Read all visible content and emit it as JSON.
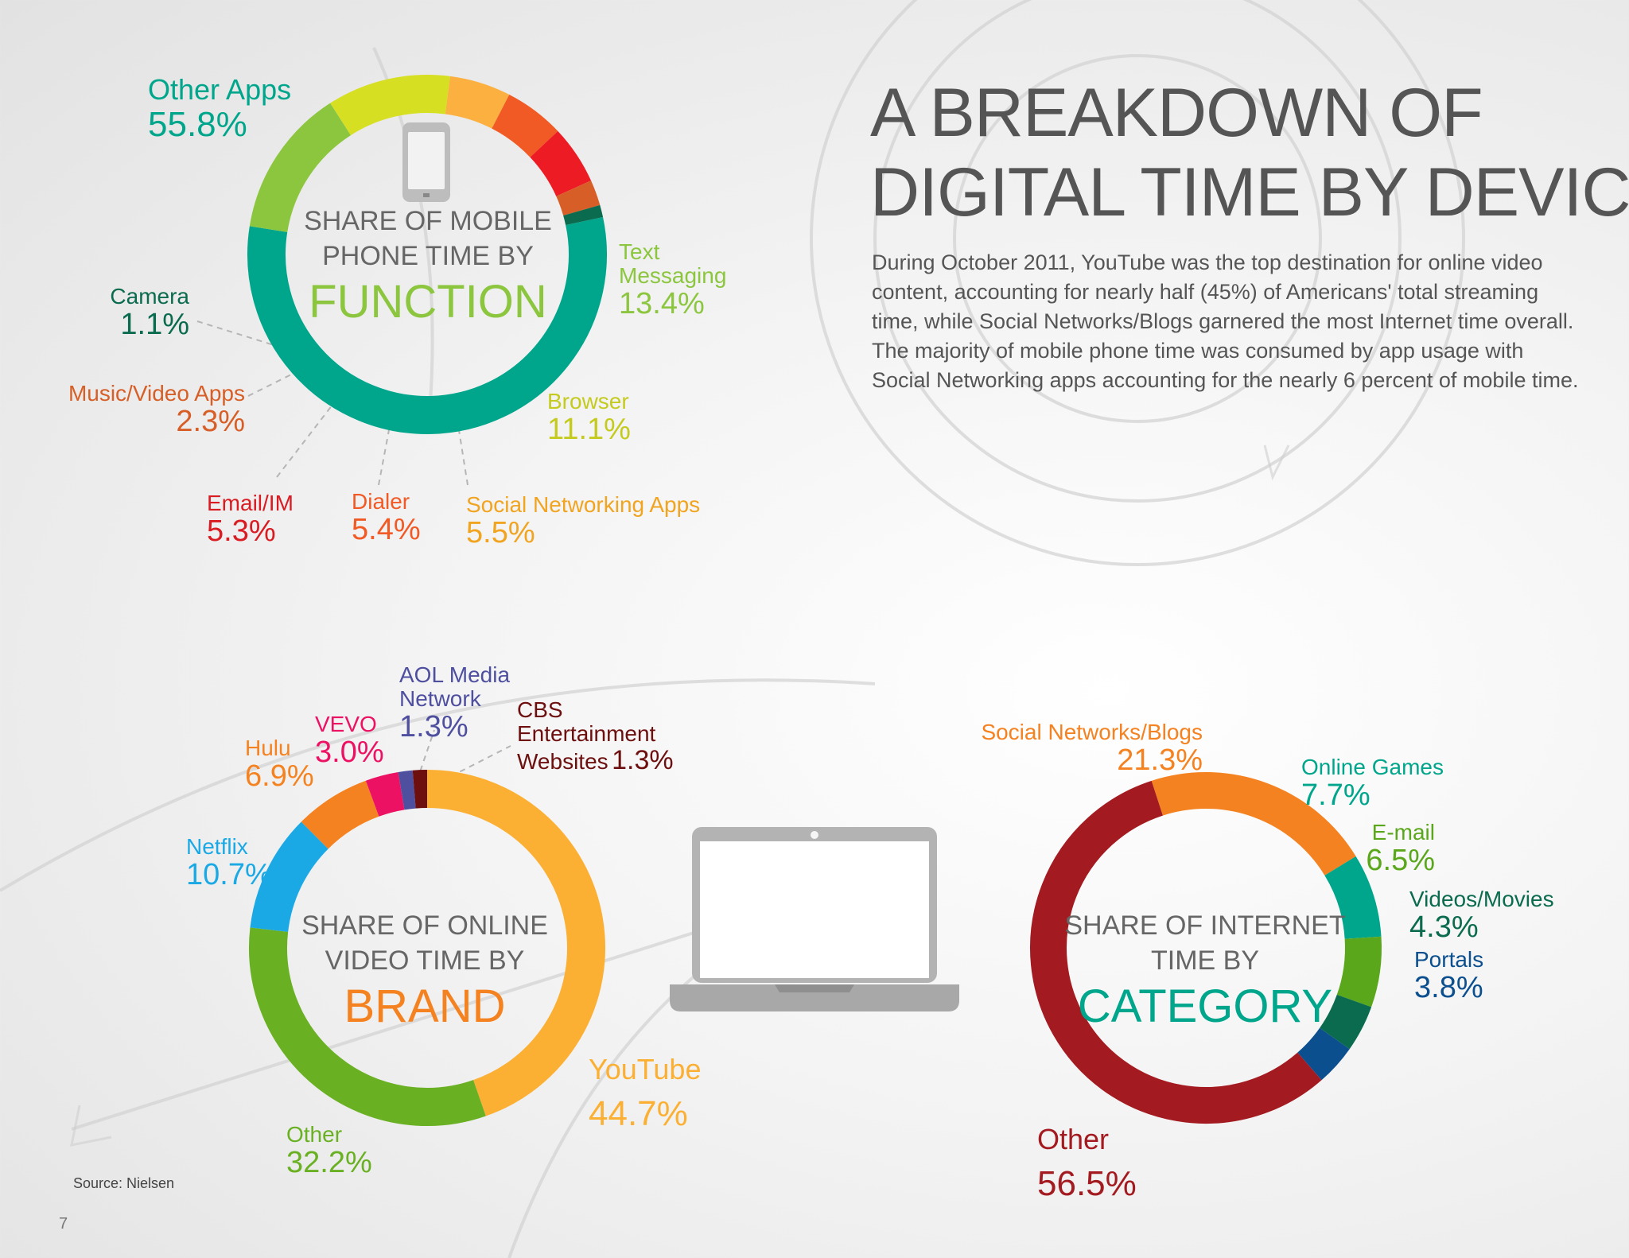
{
  "title_line1": "A BREAKDOWN OF",
  "title_line2": "DIGITAL TIME BY DEVICE",
  "intro": "During October 2011, YouTube was the top destination for online video content, accounting for nearly half (45%) of Americans' total streaming time, while Social Networks/Blogs garnered the most Internet time overall. The majority of mobile phone time was consumed by app usage with Social Networking apps accounting for the nearly 6 percent of mobile time.",
  "source": "Source: Nielsen",
  "page_number": "7",
  "icons": [
    "mobile-phone-icon",
    "laptop-icon"
  ],
  "chart_data": [
    {
      "type": "pie",
      "style": "donut",
      "title_lines": [
        "SHARE OF MOBILE",
        "PHONE TIME BY"
      ],
      "title_keyword": "FUNCTION",
      "keyword_color": "#8cc63f",
      "slices": [
        {
          "label": "Other Apps",
          "value": 55.8,
          "display": "55.8%",
          "color": "#00a68c"
        },
        {
          "label": "Text Messaging",
          "label_lines": [
            "Text",
            "Messaging"
          ],
          "value": 13.4,
          "display": "13.4%",
          "color": "#8cc63f"
        },
        {
          "label": "Browser",
          "value": 11.1,
          "display": "11.1%",
          "color": "#d7df23"
        },
        {
          "label": "Social Networking Apps",
          "value": 5.5,
          "display": "5.5%",
          "color": "#fbb040"
        },
        {
          "label": "Dialer",
          "value": 5.4,
          "display": "5.4%",
          "color": "#f15a24"
        },
        {
          "label": "Email/IM",
          "value": 5.3,
          "display": "5.3%",
          "color": "#ed1c24"
        },
        {
          "label": "Music/Video Apps",
          "value": 2.3,
          "display": "2.3%",
          "color": "#d75f27"
        },
        {
          "label": "Camera",
          "value": 1.1,
          "display": "1.1%",
          "color": "#0b6b4f"
        }
      ]
    },
    {
      "type": "pie",
      "style": "donut",
      "title_lines": [
        "SHARE OF ONLINE",
        "VIDEO TIME BY"
      ],
      "title_keyword": "BRAND",
      "keyword_color": "#f58220",
      "slices": [
        {
          "label": "YouTube",
          "value": 44.7,
          "display": "44.7%",
          "color": "#fbb034"
        },
        {
          "label": "Other",
          "value": 32.2,
          "display": "32.2%",
          "color": "#6ab023"
        },
        {
          "label": "Netflix",
          "value": 10.7,
          "display": "10.7%",
          "color": "#1ba9e6"
        },
        {
          "label": "Hulu",
          "value": 6.9,
          "display": "6.9%",
          "color": "#f58220"
        },
        {
          "label": "VEVO",
          "value": 3.0,
          "display": "3.0%",
          "color": "#ec1163"
        },
        {
          "label": "AOL Media Network",
          "label_lines": [
            "AOL Media",
            "Network"
          ],
          "value": 1.3,
          "display": "1.3%",
          "color": "#4f4fa0"
        },
        {
          "label": "CBS Entertainment Websites",
          "label_lines": [
            "CBS",
            "Entertainment",
            "Websites"
          ],
          "value": 1.3,
          "display": "1.3%",
          "color": "#6d0f0f"
        }
      ]
    },
    {
      "type": "pie",
      "style": "donut",
      "title_lines": [
        "SHARE OF INTERNET",
        "TIME BY"
      ],
      "title_keyword": "CATEGORY",
      "keyword_color": "#00a68c",
      "slices": [
        {
          "label": "Social Networks/Blogs",
          "value": 21.3,
          "display": "21.3%",
          "color": "#f58220"
        },
        {
          "label": "Online Games",
          "value": 7.7,
          "display": "7.7%",
          "color": "#00a68c"
        },
        {
          "label": "E-mail",
          "value": 6.5,
          "display": "6.5%",
          "color": "#5ba71c"
        },
        {
          "label": "Videos/Movies",
          "value": 4.3,
          "display": "4.3%",
          "color": "#0b6b4f"
        },
        {
          "label": "Portals",
          "value": 3.8,
          "display": "3.8%",
          "color": "#0b4f8f"
        },
        {
          "label": "Other",
          "value": 56.5,
          "display": "56.5%",
          "color": "#a31b20"
        }
      ]
    }
  ]
}
